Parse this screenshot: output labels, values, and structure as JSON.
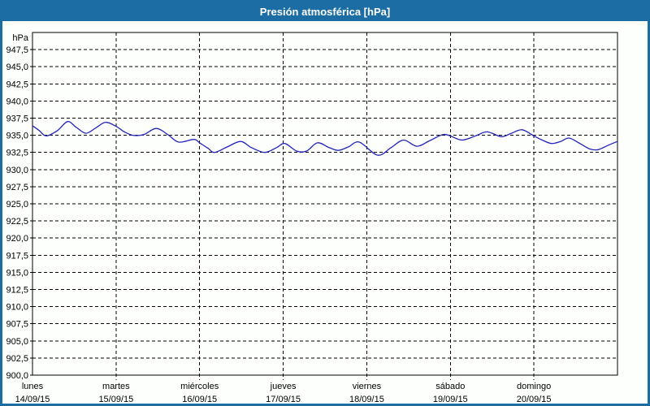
{
  "window": {
    "title": "Presión atmosférica [hPa]"
  },
  "colors": {
    "titlebar_bg": "#1c6da4",
    "window_border": "#1c6da4",
    "background": "#fdfffd",
    "grid": "#000000",
    "frame": "#000000",
    "line": "#2323b8",
    "text": "#000000"
  },
  "chart_data": {
    "type": "line",
    "title": "Presión atmosférica [hPa]",
    "ylabel": "hPa",
    "xlabel": "",
    "ylim": [
      900,
      950
    ],
    "y_step": 2.5,
    "grid": true,
    "legend": "none",
    "decimal_separator": ",",
    "y_tick_labels_bottom_to_top": [
      "900,0",
      "902,5",
      "905,0",
      "907,5",
      "910,0",
      "912,5",
      "915,0",
      "917,5",
      "920,0",
      "922,5",
      "925,0",
      "927,5",
      "930,0",
      "932,5",
      "935,0",
      "937,5",
      "940,0",
      "942,5",
      "945,0",
      "947,5"
    ],
    "x_span_days": 7,
    "days": [
      {
        "weekday": "lunes",
        "date": "14/09/15"
      },
      {
        "weekday": "martes",
        "date": "15/09/15"
      },
      {
        "weekday": "miércoles",
        "date": "16/09/15"
      },
      {
        "weekday": "jueves",
        "date": "17/09/15"
      },
      {
        "weekday": "viernes",
        "date": "18/09/15"
      },
      {
        "weekday": "sábado",
        "date": "19/09/15"
      },
      {
        "weekday": "domingo",
        "date": "20/09/15"
      }
    ],
    "series": [
      {
        "name": "Presión atmosférica",
        "unit": "hPa",
        "color": "#2323b8",
        "points": [
          [
            0.0,
            936.4
          ],
          [
            0.08,
            935.7
          ],
          [
            0.165,
            934.9
          ],
          [
            0.3,
            935.7
          ],
          [
            0.42,
            937.0
          ],
          [
            0.52,
            936.2
          ],
          [
            0.64,
            935.3
          ],
          [
            0.76,
            936.1
          ],
          [
            0.875,
            936.9
          ],
          [
            1.0,
            936.3
          ],
          [
            1.1,
            935.5
          ],
          [
            1.2,
            935.0
          ],
          [
            1.33,
            935.1
          ],
          [
            1.48,
            936.0
          ],
          [
            1.62,
            935.1
          ],
          [
            1.75,
            934.0
          ],
          [
            1.93,
            934.4
          ],
          [
            2.0,
            933.9
          ],
          [
            2.1,
            933.1
          ],
          [
            2.18,
            932.5
          ],
          [
            2.33,
            933.3
          ],
          [
            2.49,
            934.1
          ],
          [
            2.62,
            933.2
          ],
          [
            2.78,
            932.5
          ],
          [
            2.92,
            933.2
          ],
          [
            3.02,
            933.8
          ],
          [
            3.16,
            932.7
          ],
          [
            3.28,
            932.7
          ],
          [
            3.41,
            933.9
          ],
          [
            3.55,
            933.2
          ],
          [
            3.66,
            932.8
          ],
          [
            3.78,
            933.3
          ],
          [
            3.91,
            934.0
          ],
          [
            4.13,
            932.1
          ],
          [
            4.29,
            933.2
          ],
          [
            4.44,
            934.3
          ],
          [
            4.6,
            933.4
          ],
          [
            4.75,
            934.2
          ],
          [
            4.91,
            935.1
          ],
          [
            5.0,
            934.9
          ],
          [
            5.14,
            934.3
          ],
          [
            5.3,
            934.9
          ],
          [
            5.44,
            935.5
          ],
          [
            5.61,
            934.8
          ],
          [
            5.73,
            935.3
          ],
          [
            5.86,
            935.8
          ],
          [
            6.0,
            934.9
          ],
          [
            6.1,
            934.3
          ],
          [
            6.21,
            933.8
          ],
          [
            6.32,
            934.1
          ],
          [
            6.42,
            934.6
          ],
          [
            6.55,
            933.8
          ],
          [
            6.67,
            933.0
          ],
          [
            6.77,
            932.9
          ],
          [
            6.88,
            933.5
          ],
          [
            7.0,
            934.1
          ]
        ]
      }
    ]
  }
}
